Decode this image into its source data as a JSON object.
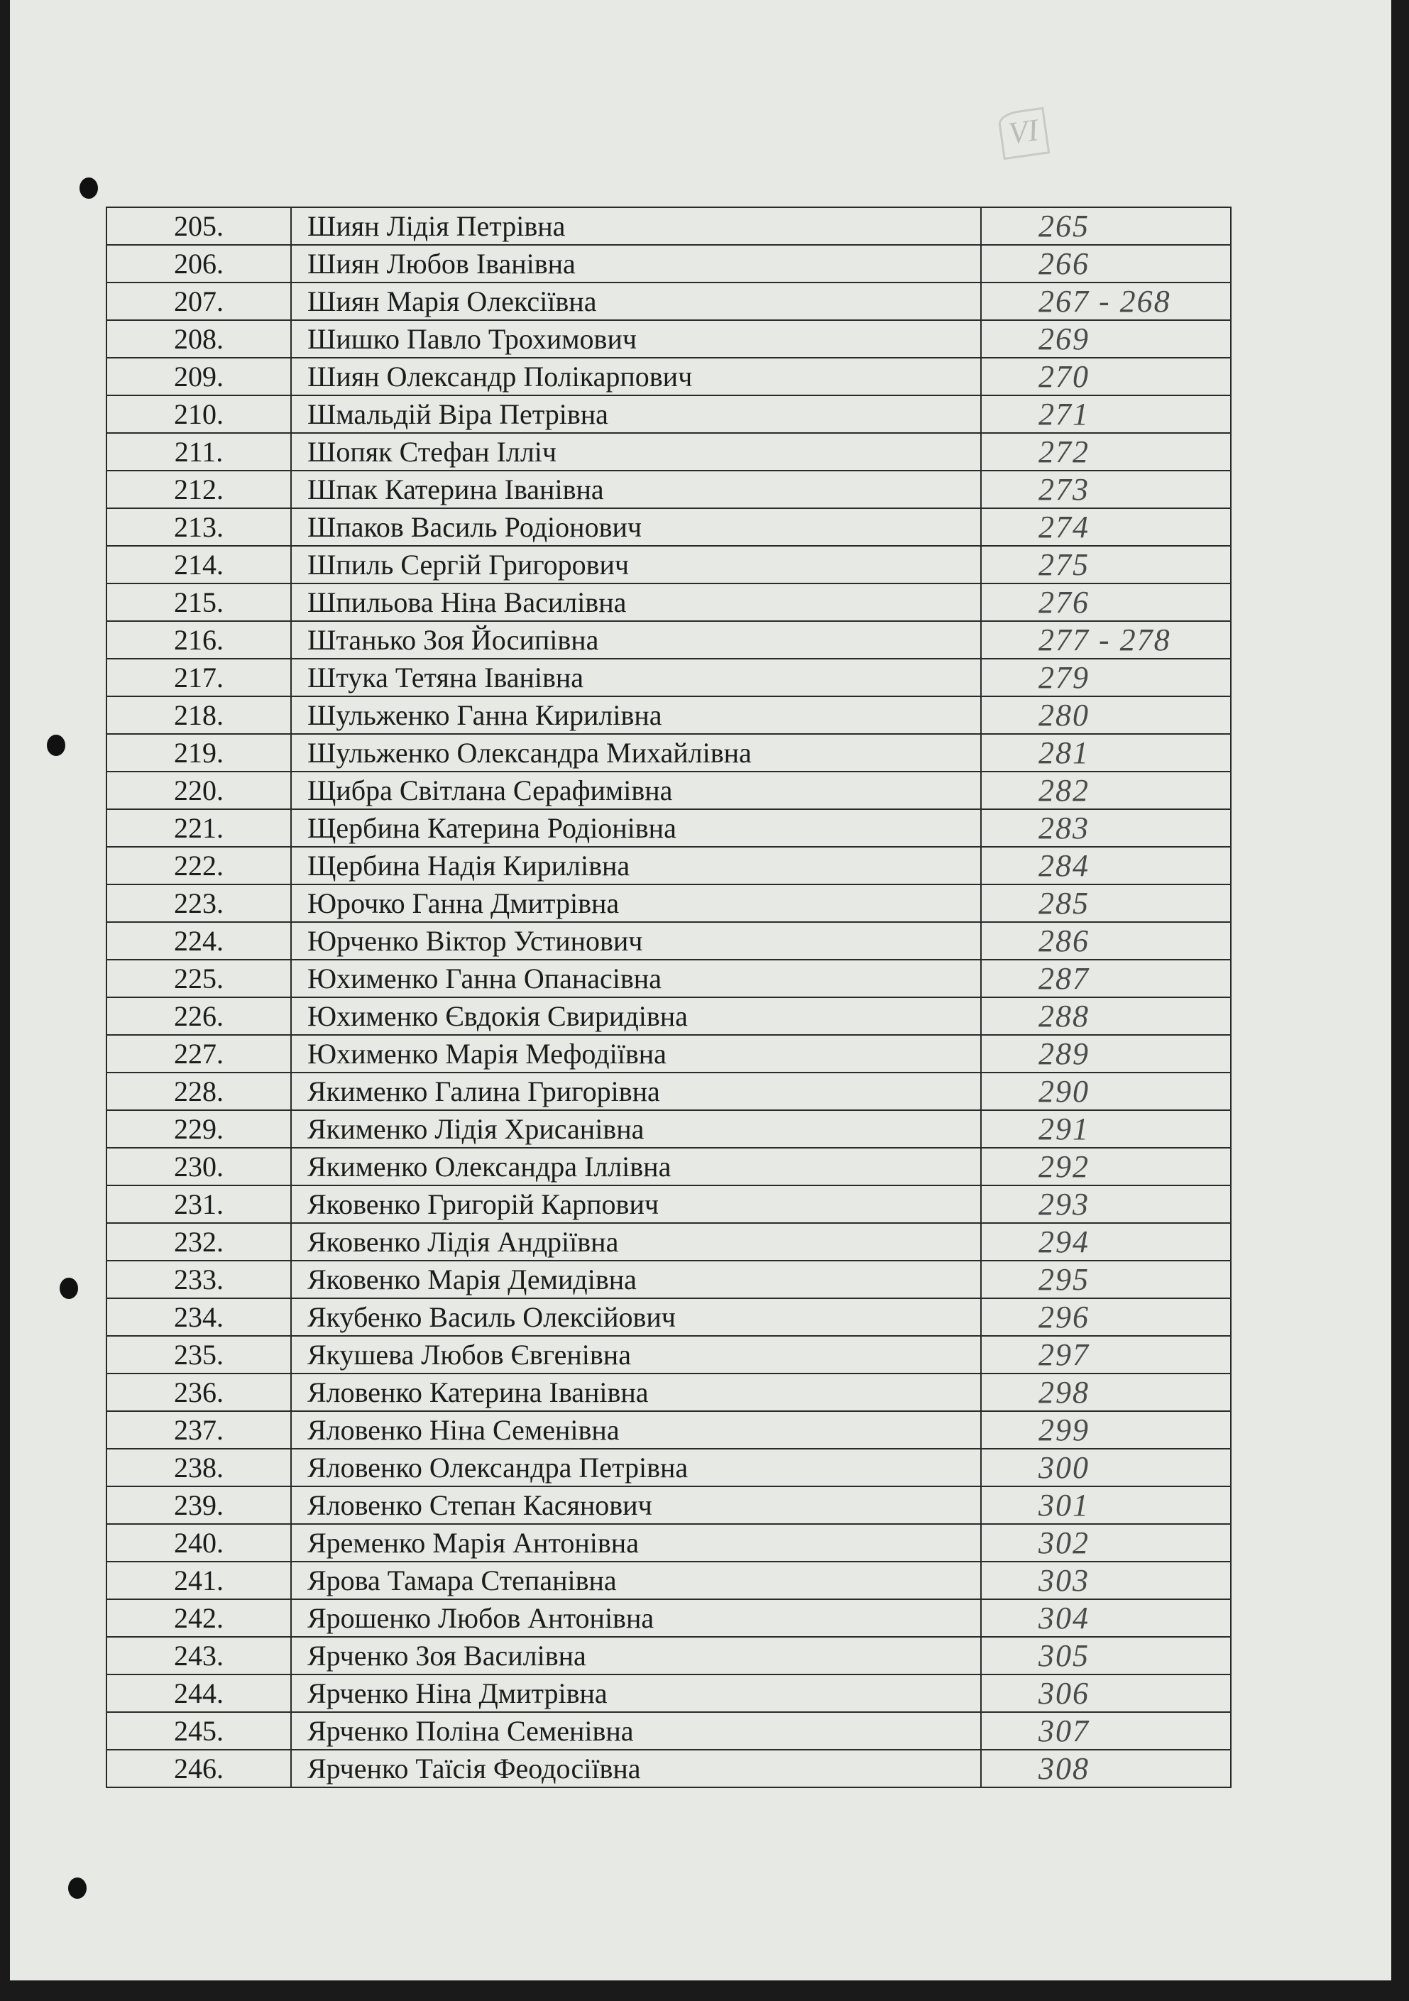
{
  "page_mark": "VI",
  "rows": [
    {
      "n": "205.",
      "name": "Шиян Лідія Петрівна",
      "ref": "265"
    },
    {
      "n": "206.",
      "name": "Шиян Любов Іванівна",
      "ref": "266"
    },
    {
      "n": "207.",
      "name": "Шиян Марія Олексіївна",
      "ref": "267 - 268"
    },
    {
      "n": "208.",
      "name": "Шишко Павло Трохимович",
      "ref": "269"
    },
    {
      "n": "209.",
      "name": "Шиян Олександр Полікарпович",
      "ref": "270"
    },
    {
      "n": "210.",
      "name": "Шмальдій Віра Петрівна",
      "ref": "271"
    },
    {
      "n": "211.",
      "name": "Шопяк Стефан Ілліч",
      "ref": "272"
    },
    {
      "n": "212.",
      "name": "Шпак Катерина Іванівна",
      "ref": "273"
    },
    {
      "n": "213.",
      "name": "Шпаков Василь Родіонович",
      "ref": "274"
    },
    {
      "n": "214.",
      "name": "Шпиль Сергій Григорович",
      "ref": "275"
    },
    {
      "n": "215.",
      "name": "Шпильова Ніна Василівна",
      "ref": "276"
    },
    {
      "n": "216.",
      "name": "Штанько Зоя Йосипівна",
      "ref": "277 - 278"
    },
    {
      "n": "217.",
      "name": "Штука Тетяна Іванівна",
      "ref": "279"
    },
    {
      "n": "218.",
      "name": "Шульженко Ганна Кирилівна",
      "ref": "280"
    },
    {
      "n": "219.",
      "name": "Шульженко Олександра Михайлівна",
      "ref": "281"
    },
    {
      "n": "220.",
      "name": "Щибра Світлана Серафимівна",
      "ref": "282"
    },
    {
      "n": "221.",
      "name": "Щербина Катерина Родіонівна",
      "ref": "283"
    },
    {
      "n": "222.",
      "name": "Щербина Надія Кирилівна",
      "ref": "284"
    },
    {
      "n": "223.",
      "name": "Юрочко Ганна Дмитрівна",
      "ref": "285"
    },
    {
      "n": "224.",
      "name": "Юрченко Віктор Устинович",
      "ref": "286"
    },
    {
      "n": "225.",
      "name": "Юхименко Ганна Опанасівна",
      "ref": "287"
    },
    {
      "n": "226.",
      "name": "Юхименко Євдокія Свиридівна",
      "ref": "288"
    },
    {
      "n": "227.",
      "name": "Юхименко Марія Мефодіївна",
      "ref": "289"
    },
    {
      "n": "228.",
      "name": "Якименко Галина Григорівна",
      "ref": "290"
    },
    {
      "n": "229.",
      "name": "Якименко Лідія Хрисанівна",
      "ref": "291"
    },
    {
      "n": "230.",
      "name": "Якименко Олександра Іллівна",
      "ref": "292"
    },
    {
      "n": "231.",
      "name": "Яковенко Григорій Карпович",
      "ref": "293"
    },
    {
      "n": "232.",
      "name": "Яковенко Лідія Андріївна",
      "ref": "294"
    },
    {
      "n": "233.",
      "name": "Яковенко Марія Демидівна",
      "ref": "295"
    },
    {
      "n": "234.",
      "name": "Якубенко Василь Олексійович",
      "ref": "296"
    },
    {
      "n": "235.",
      "name": "Якушева Любов Євгенівна",
      "ref": "297"
    },
    {
      "n": "236.",
      "name": "Яловенко Катерина Іванівна",
      "ref": "298"
    },
    {
      "n": "237.",
      "name": "Яловенко Ніна Семенівна",
      "ref": "299"
    },
    {
      "n": "238.",
      "name": "Яловенко Олександра Петрівна",
      "ref": "300"
    },
    {
      "n": "239.",
      "name": "Яловенко Степан Касянович",
      "ref": "301"
    },
    {
      "n": "240.",
      "name": "Яременко Марія Антонівна",
      "ref": "302"
    },
    {
      "n": "241.",
      "name": "Ярова Тамара Степанівна",
      "ref": "303"
    },
    {
      "n": "242.",
      "name": "Ярошенко Любов Антонівна",
      "ref": "304"
    },
    {
      "n": "243.",
      "name": "Ярченко Зоя Василівна",
      "ref": "305"
    },
    {
      "n": "244.",
      "name": "Ярченко Ніна Дмитрівна",
      "ref": "306"
    },
    {
      "n": "245.",
      "name": "Ярченко Поліна Семенівна",
      "ref": "307"
    },
    {
      "n": "246.",
      "name": "Ярченко Таїсія Феодосіївна",
      "ref": "308"
    }
  ]
}
